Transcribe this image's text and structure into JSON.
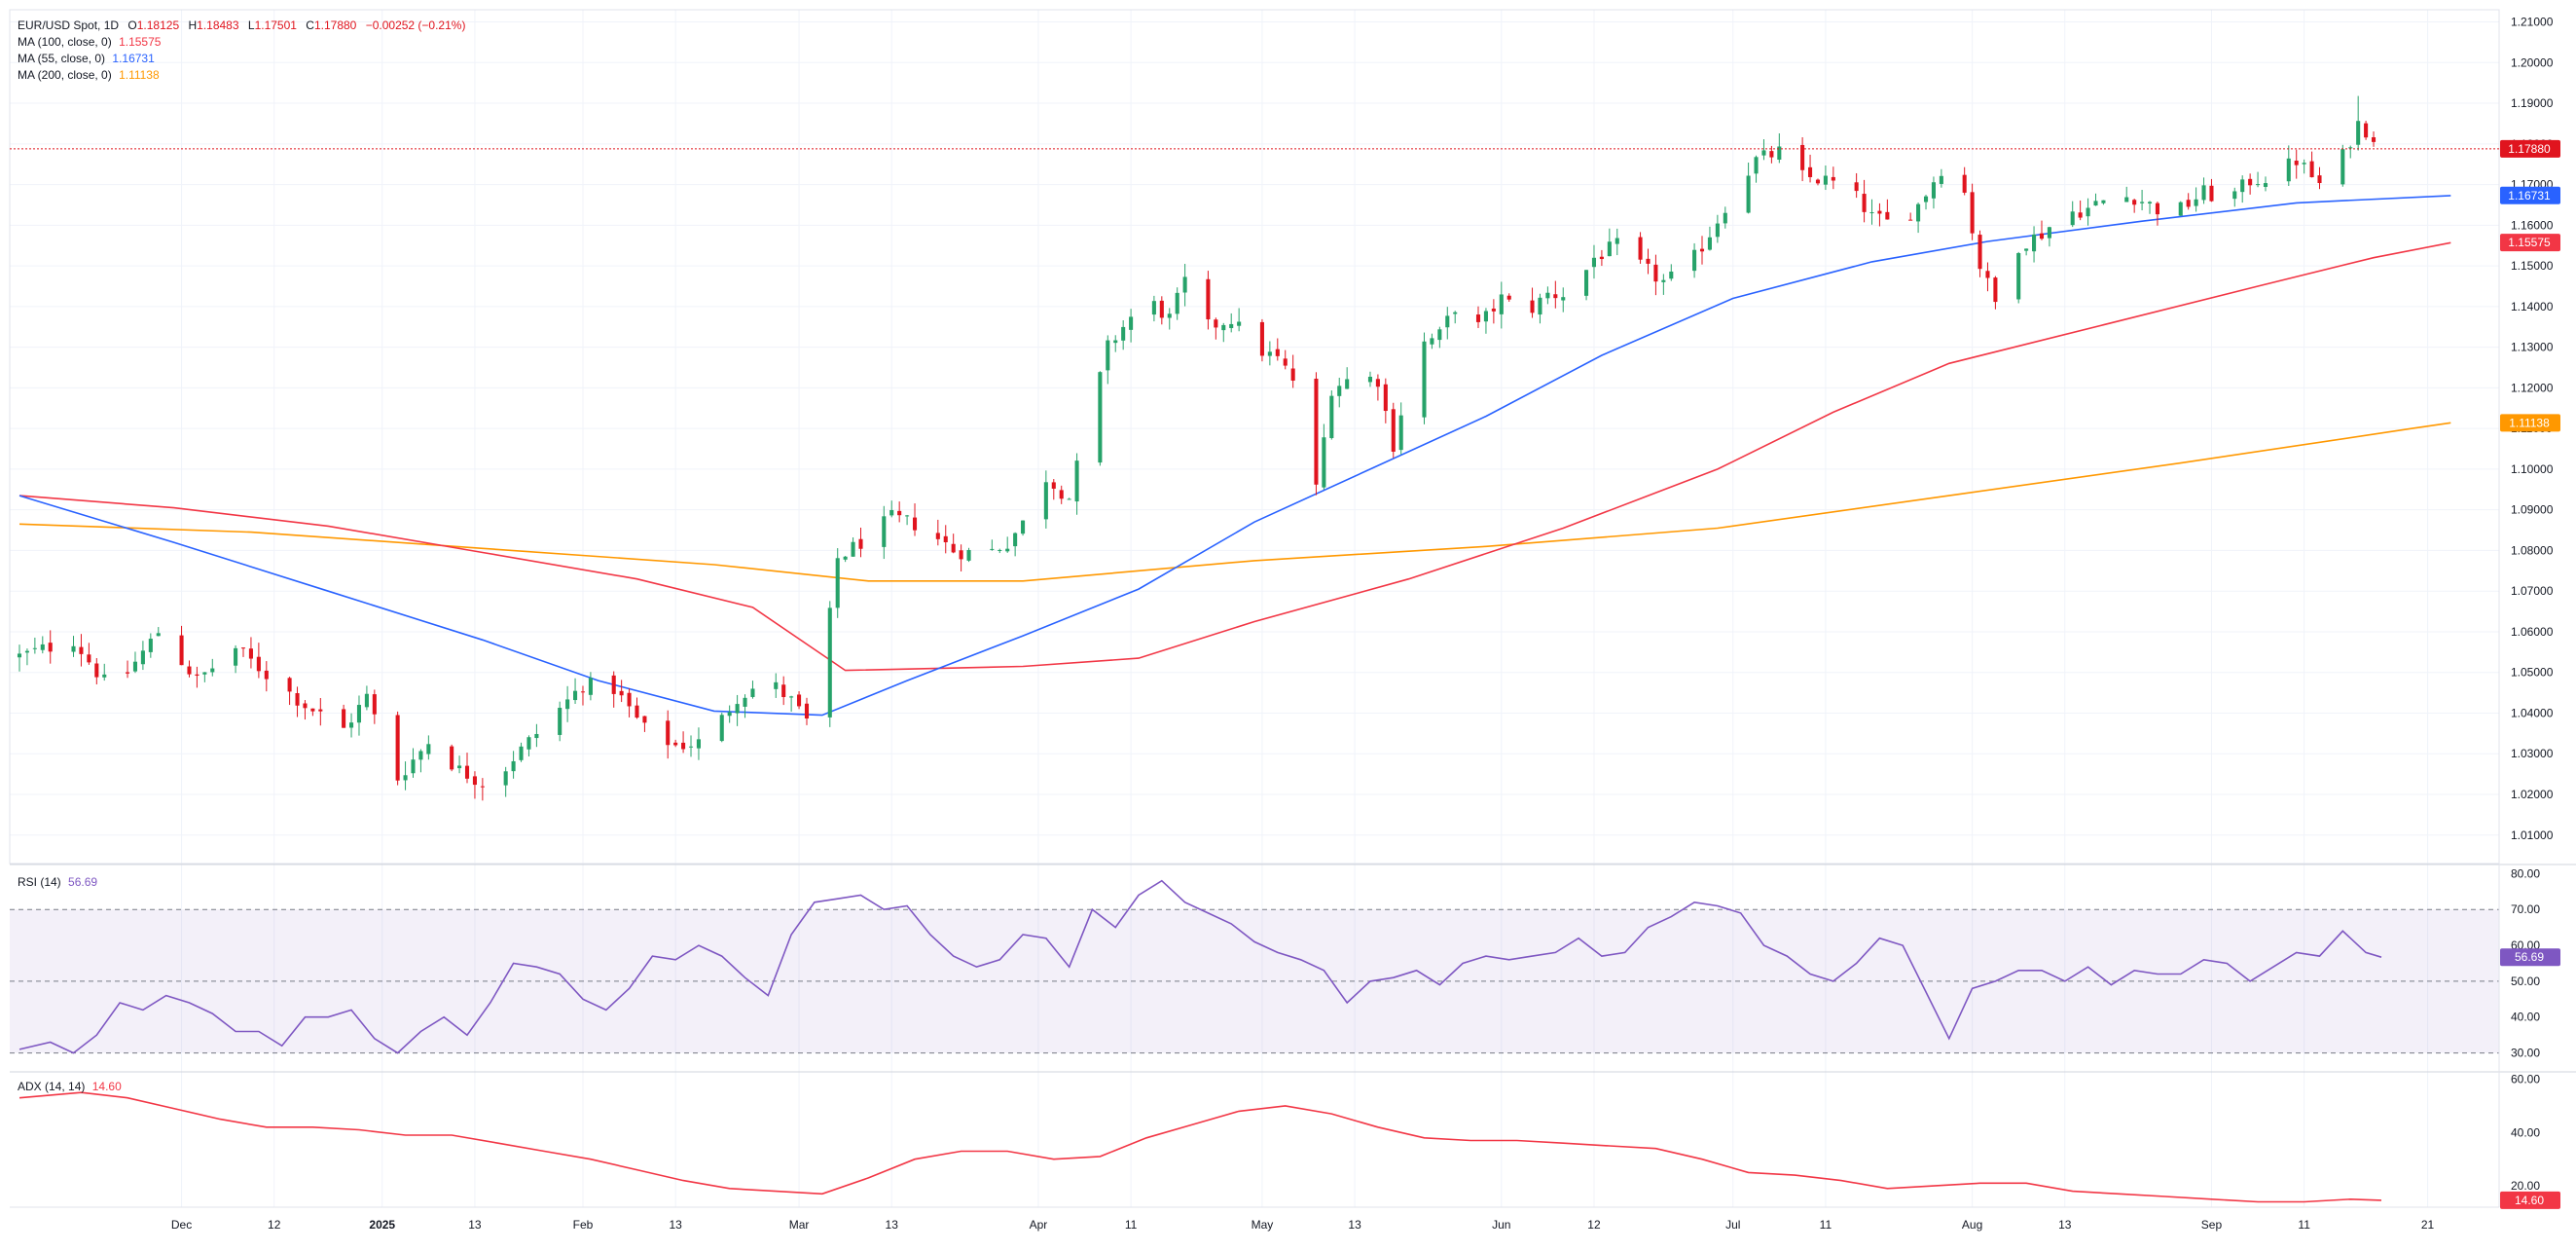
{
  "header": {
    "symbol": "EUR/USD Spot",
    "interval": "1D",
    "ohlc_open_label": "O",
    "ohlc_open": "1.18125",
    "ohlc_high_label": "H",
    "ohlc_high": "1.18483",
    "ohlc_low_label": "L",
    "ohlc_low": "1.17501",
    "ohlc_close_label": "C",
    "ohlc_close": "1.17880",
    "ohlc_change": "−0.00252 (−0.21%)",
    "ma100_label": "MA (100, close, 0)",
    "ma100_value": "1.15575",
    "ma55_label": "MA (55, close, 0)",
    "ma55_value": "1.16731",
    "ma200_label": "MA (200, close, 0)",
    "ma200_value": "1.11138",
    "rsi_label": "RSI (14)",
    "rsi_value": "56.69",
    "adx_label": "ADX (14, 14)",
    "adx_value": "14.60"
  },
  "colors": {
    "up": "#26a269",
    "down": "#e0141e",
    "ma55": "#2962ff",
    "ma100": "#f23645",
    "ma200": "#ff9800",
    "rsi": "#7e57c2",
    "adx": "#f23645",
    "price_tag": "#e0141e"
  },
  "chart_data": [
    {
      "type": "candlestick",
      "title": "EUR/USD Spot, 1D",
      "y_axis_ticks": [
        "1.01000",
        "1.02000",
        "1.03000",
        "1.04000",
        "1.05000",
        "1.06000",
        "1.07000",
        "1.08000",
        "1.09000",
        "1.10000",
        "1.11000",
        "1.12000",
        "1.13000",
        "1.14000",
        "1.15000",
        "1.16000",
        "1.17000",
        "1.18000",
        "1.19000",
        "1.20000",
        "1.21000"
      ],
      "ylim": [
        1.003,
        1.213
      ],
      "x_axis_ticks": [
        "Dec",
        "12",
        "2025",
        "13",
        "Feb",
        "13",
        "Mar",
        "13",
        "Apr",
        "11",
        "May",
        "13",
        "Jun",
        "12",
        "Jul",
        "11",
        "Aug",
        "13",
        "Sep",
        "11",
        "21"
      ],
      "x_tick_days": [
        21,
        33,
        47,
        59,
        73,
        85,
        101,
        113,
        132,
        144,
        161,
        173,
        192,
        204,
        222,
        234,
        253,
        265,
        284,
        296,
        312
      ],
      "price_levels": {
        "last": "1.17880",
        "ma55": "1.16731",
        "ma100": "1.15575",
        "ma200": "1.11138"
      },
      "ma_series": [
        {
          "name": "MA (200, close, 0)",
          "points": [
            [
              0,
              1.0865
            ],
            [
              30,
              1.0845
            ],
            [
              60,
              1.0805
            ],
            [
              90,
              1.0765
            ],
            [
              110,
              1.0725
            ],
            [
              130,
              1.0725
            ],
            [
              160,
              1.0775
            ],
            [
              190,
              1.081
            ],
            [
              220,
              1.0855
            ],
            [
              250,
              1.0935
            ],
            [
              280,
              1.1015
            ],
            [
              310,
              1.11
            ],
            [
              315,
              1.1114
            ]
          ]
        },
        {
          "name": "MA (100, close, 0)",
          "points": [
            [
              0,
              1.0935
            ],
            [
              20,
              1.0905
            ],
            [
              40,
              1.086
            ],
            [
              60,
              1.0795
            ],
            [
              80,
              1.073
            ],
            [
              95,
              1.066
            ],
            [
              107,
              1.0505
            ],
            [
              130,
              1.0515
            ],
            [
              145,
              1.0535
            ],
            [
              160,
              1.0625
            ],
            [
              180,
              1.073
            ],
            [
              200,
              1.0855
            ],
            [
              220,
              1.1
            ],
            [
              235,
              1.114
            ],
            [
              250,
              1.126
            ],
            [
              270,
              1.1355
            ],
            [
              290,
              1.145
            ],
            [
              305,
              1.152
            ],
            [
              315,
              1.1557
            ]
          ]
        },
        {
          "name": "MA (55, close, 0)",
          "points": [
            [
              0,
              1.0935
            ],
            [
              20,
              1.082
            ],
            [
              40,
              1.07
            ],
            [
              60,
              1.058
            ],
            [
              75,
              1.048
            ],
            [
              90,
              1.0405
            ],
            [
              104,
              1.0395
            ],
            [
              115,
              1.048
            ],
            [
              130,
              1.059
            ],
            [
              145,
              1.0705
            ],
            [
              160,
              1.087
            ],
            [
              175,
              1.1
            ],
            [
              190,
              1.113
            ],
            [
              205,
              1.128
            ],
            [
              222,
              1.142
            ],
            [
              240,
              1.151
            ],
            [
              255,
              1.156
            ],
            [
              275,
              1.161
            ],
            [
              295,
              1.1655
            ],
            [
              315,
              1.1673
            ]
          ]
        }
      ],
      "candles_anchor": [
        [
          0,
          1.054
        ],
        [
          7,
          1.058
        ],
        [
          12,
          1.045
        ],
        [
          18,
          1.06
        ],
        [
          23,
          1.048
        ],
        [
          28,
          1.056
        ],
        [
          33,
          1.048
        ],
        [
          37,
          1.042
        ],
        [
          42,
          1.036
        ],
        [
          45,
          1.044
        ],
        [
          49,
          1.024
        ],
        [
          53,
          1.033
        ],
        [
          57,
          1.026
        ],
        [
          61,
          1.022
        ],
        [
          64,
          1.029
        ],
        [
          69,
          1.039
        ],
        [
          73,
          1.047
        ],
        [
          77,
          1.046
        ],
        [
          81,
          1.036
        ],
        [
          85,
          1.032
        ],
        [
          89,
          1.033
        ],
        [
          93,
          1.044
        ],
        [
          97,
          1.048
        ],
        [
          100,
          1.043
        ],
        [
          102,
          1.038
        ],
        [
          104,
          1.05
        ],
        [
          106,
          1.078
        ],
        [
          109,
          1.082
        ],
        [
          113,
          1.088
        ],
        [
          117,
          1.086
        ],
        [
          121,
          1.08
        ],
        [
          125,
          1.079
        ],
        [
          128,
          1.082
        ],
        [
          131,
          1.089
        ],
        [
          133,
          1.098
        ],
        [
          136,
          1.093
        ],
        [
          138,
          1.108
        ],
        [
          141,
          1.13
        ],
        [
          143,
          1.135
        ],
        [
          146,
          1.142
        ],
        [
          149,
          1.137
        ],
        [
          151,
          1.146
        ],
        [
          154,
          1.135
        ],
        [
          157,
          1.137
        ],
        [
          160,
          1.13
        ],
        [
          163,
          1.127
        ],
        [
          165,
          1.122
        ],
        [
          168,
          1.095
        ],
        [
          170,
          1.12
        ],
        [
          173,
          1.123
        ],
        [
          176,
          1.122
        ],
        [
          178,
          1.106
        ],
        [
          181,
          1.13
        ],
        [
          184,
          1.133
        ],
        [
          186,
          1.14
        ],
        [
          189,
          1.135
        ],
        [
          192,
          1.142
        ],
        [
          195,
          1.138
        ],
        [
          198,
          1.143
        ],
        [
          201,
          1.143
        ],
        [
          204,
          1.152
        ],
        [
          207,
          1.155
        ],
        [
          210,
          1.15
        ],
        [
          213,
          1.146
        ],
        [
          216,
          1.149
        ],
        [
          219,
          1.158
        ],
        [
          222,
          1.168
        ],
        [
          225,
          1.176
        ],
        [
          228,
          1.178
        ],
        [
          231,
          1.172
        ],
        [
          234,
          1.171
        ],
        [
          237,
          1.169
        ],
        [
          240,
          1.162
        ],
        [
          243,
          1.16
        ],
        [
          246,
          1.165
        ],
        [
          249,
          1.174
        ],
        [
          252,
          1.168
        ],
        [
          254,
          1.15
        ],
        [
          256,
          1.141
        ],
        [
          259,
          1.155
        ],
        [
          262,
          1.158
        ],
        [
          265,
          1.163
        ],
        [
          268,
          1.164
        ],
        [
          271,
          1.167
        ],
        [
          274,
          1.167
        ],
        [
          277,
          1.164
        ],
        [
          280,
          1.164
        ],
        [
          283,
          1.168
        ],
        [
          286,
          1.166
        ],
        [
          289,
          1.171
        ],
        [
          292,
          1.172
        ],
        [
          295,
          1.176
        ],
        [
          298,
          1.17
        ],
        [
          301,
          1.177
        ],
        [
          303,
          1.185
        ],
        [
          305,
          1.182
        ],
        [
          306,
          1.1788
        ]
      ]
    },
    {
      "type": "line",
      "name": "RSI (14)",
      "y_axis_ticks": [
        "30.00",
        "40.00",
        "50.00",
        "60.00",
        "70.00",
        "80.00"
      ],
      "ylim": [
        25,
        82
      ],
      "band": [
        30,
        70
      ],
      "midline": 50,
      "last_value": "56.69",
      "points": [
        [
          0,
          31
        ],
        [
          4,
          33
        ],
        [
          7,
          30
        ],
        [
          10,
          35
        ],
        [
          13,
          44
        ],
        [
          16,
          42
        ],
        [
          19,
          46
        ],
        [
          22,
          44
        ],
        [
          25,
          41
        ],
        [
          28,
          36
        ],
        [
          31,
          36
        ],
        [
          34,
          32
        ],
        [
          37,
          40
        ],
        [
          40,
          40
        ],
        [
          43,
          42
        ],
        [
          46,
          34
        ],
        [
          49,
          30
        ],
        [
          52,
          36
        ],
        [
          55,
          40
        ],
        [
          58,
          35
        ],
        [
          61,
          44
        ],
        [
          64,
          55
        ],
        [
          67,
          54
        ],
        [
          70,
          52
        ],
        [
          73,
          45
        ],
        [
          76,
          42
        ],
        [
          79,
          48
        ],
        [
          82,
          57
        ],
        [
          85,
          56
        ],
        [
          88,
          60
        ],
        [
          91,
          57
        ],
        [
          94,
          51
        ],
        [
          97,
          46
        ],
        [
          100,
          63
        ],
        [
          103,
          72
        ],
        [
          106,
          73
        ],
        [
          109,
          74
        ],
        [
          112,
          70
        ],
        [
          115,
          71
        ],
        [
          118,
          63
        ],
        [
          121,
          57
        ],
        [
          124,
          54
        ],
        [
          127,
          56
        ],
        [
          130,
          63
        ],
        [
          133,
          62
        ],
        [
          136,
          54
        ],
        [
          139,
          70
        ],
        [
          142,
          65
        ],
        [
          145,
          74
        ],
        [
          148,
          78
        ],
        [
          151,
          72
        ],
        [
          154,
          69
        ],
        [
          157,
          66
        ],
        [
          160,
          61
        ],
        [
          163,
          58
        ],
        [
          166,
          56
        ],
        [
          169,
          53
        ],
        [
          172,
          44
        ],
        [
          175,
          50
        ],
        [
          178,
          51
        ],
        [
          181,
          53
        ],
        [
          184,
          49
        ],
        [
          187,
          55
        ],
        [
          190,
          57
        ],
        [
          193,
          56
        ],
        [
          196,
          57
        ],
        [
          199,
          58
        ],
        [
          202,
          62
        ],
        [
          205,
          57
        ],
        [
          208,
          58
        ],
        [
          211,
          65
        ],
        [
          214,
          68
        ],
        [
          217,
          72
        ],
        [
          220,
          71
        ],
        [
          223,
          69
        ],
        [
          226,
          60
        ],
        [
          229,
          57
        ],
        [
          232,
          52
        ],
        [
          235,
          50
        ],
        [
          238,
          55
        ],
        [
          241,
          62
        ],
        [
          244,
          60
        ],
        [
          247,
          47
        ],
        [
          250,
          34
        ],
        [
          253,
          48
        ],
        [
          256,
          50
        ],
        [
          259,
          53
        ],
        [
          262,
          53
        ],
        [
          265,
          50
        ],
        [
          268,
          54
        ],
        [
          271,
          49
        ],
        [
          274,
          53
        ],
        [
          277,
          52
        ],
        [
          280,
          52
        ],
        [
          283,
          56
        ],
        [
          286,
          55
        ],
        [
          289,
          50
        ],
        [
          292,
          54
        ],
        [
          295,
          58
        ],
        [
          298,
          57
        ],
        [
          301,
          64
        ],
        [
          304,
          58
        ],
        [
          306,
          56.69
        ]
      ]
    },
    {
      "type": "line",
      "name": "ADX (14, 14)",
      "y_axis_ticks": [
        "20.00",
        "40.00",
        "60.00"
      ],
      "ylim": [
        12,
        62
      ],
      "last_value": "14.60",
      "points": [
        [
          0,
          53
        ],
        [
          8,
          55
        ],
        [
          14,
          53
        ],
        [
          20,
          49
        ],
        [
          26,
          45
        ],
        [
          32,
          42
        ],
        [
          38,
          42
        ],
        [
          44,
          41
        ],
        [
          50,
          39
        ],
        [
          56,
          39
        ],
        [
          62,
          36
        ],
        [
          68,
          33
        ],
        [
          74,
          30
        ],
        [
          80,
          26
        ],
        [
          86,
          22
        ],
        [
          92,
          19
        ],
        [
          98,
          18
        ],
        [
          104,
          17
        ],
        [
          110,
          23
        ],
        [
          116,
          30
        ],
        [
          122,
          33
        ],
        [
          128,
          33
        ],
        [
          134,
          30
        ],
        [
          140,
          31
        ],
        [
          146,
          38
        ],
        [
          152,
          43
        ],
        [
          158,
          48
        ],
        [
          164,
          50
        ],
        [
          170,
          47
        ],
        [
          176,
          42
        ],
        [
          182,
          38
        ],
        [
          188,
          37
        ],
        [
          194,
          37
        ],
        [
          200,
          36
        ],
        [
          206,
          35
        ],
        [
          212,
          34
        ],
        [
          218,
          30
        ],
        [
          224,
          25
        ],
        [
          230,
          24
        ],
        [
          236,
          22
        ],
        [
          242,
          19
        ],
        [
          248,
          20
        ],
        [
          254,
          21
        ],
        [
          260,
          21
        ],
        [
          266,
          18
        ],
        [
          272,
          17
        ],
        [
          278,
          16
        ],
        [
          284,
          15
        ],
        [
          290,
          14
        ],
        [
          296,
          14
        ],
        [
          302,
          15
        ],
        [
          306,
          14.6
        ]
      ]
    }
  ]
}
